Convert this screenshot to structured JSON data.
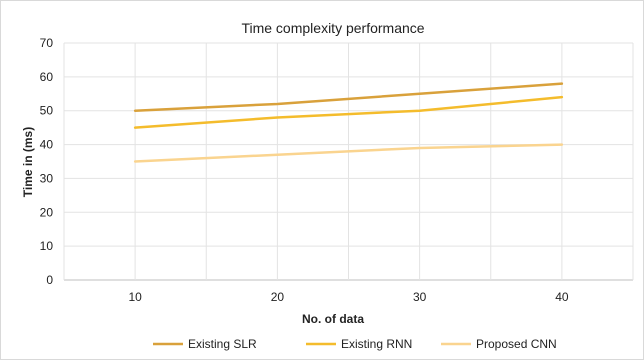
{
  "chart_data": {
    "type": "line",
    "title": "Time complexity performance",
    "xlabel": "No. of data",
    "ylabel": "Time in (ms)",
    "x": [
      10,
      20,
      30,
      40
    ],
    "xlim": [
      5,
      45
    ],
    "ylim": [
      0,
      70
    ],
    "yticks": [
      0,
      10,
      20,
      30,
      40,
      50,
      60,
      70
    ],
    "xticks": [
      10,
      20,
      30,
      40
    ],
    "grid": true,
    "legend_position": "bottom",
    "series": [
      {
        "name": "Existing SLR",
        "values": [
          50,
          52,
          55,
          58
        ],
        "color": "#D9A13B"
      },
      {
        "name": "Existing RNN",
        "values": [
          45,
          48,
          50,
          54
        ],
        "color": "#F4BC2C"
      },
      {
        "name": "Proposed CNN",
        "values": [
          35,
          37,
          39,
          40
        ],
        "color": "#FAD48F"
      }
    ]
  }
}
